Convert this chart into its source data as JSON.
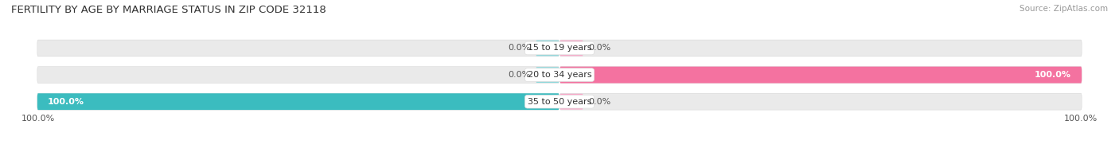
{
  "title": "FERTILITY BY AGE BY MARRIAGE STATUS IN ZIP CODE 32118",
  "source": "Source: ZipAtlas.com",
  "categories": [
    "15 to 19 years",
    "20 to 34 years",
    "35 to 50 years"
  ],
  "married_values": [
    0.0,
    0.0,
    100.0
  ],
  "unmarried_values": [
    0.0,
    100.0,
    0.0
  ],
  "married_color": "#3BBCBF",
  "unmarried_color": "#F472A0",
  "married_color_light": "#8DD8DC",
  "unmarried_color_light": "#F9A8C9",
  "bar_bg_color": "#EAEAEA",
  "bar_height": 0.62,
  "title_fontsize": 9.5,
  "label_fontsize": 8.0,
  "source_fontsize": 7.5,
  "legend_fontsize": 8.5,
  "axis_label_left": "100.0%",
  "axis_label_right": "100.0%"
}
